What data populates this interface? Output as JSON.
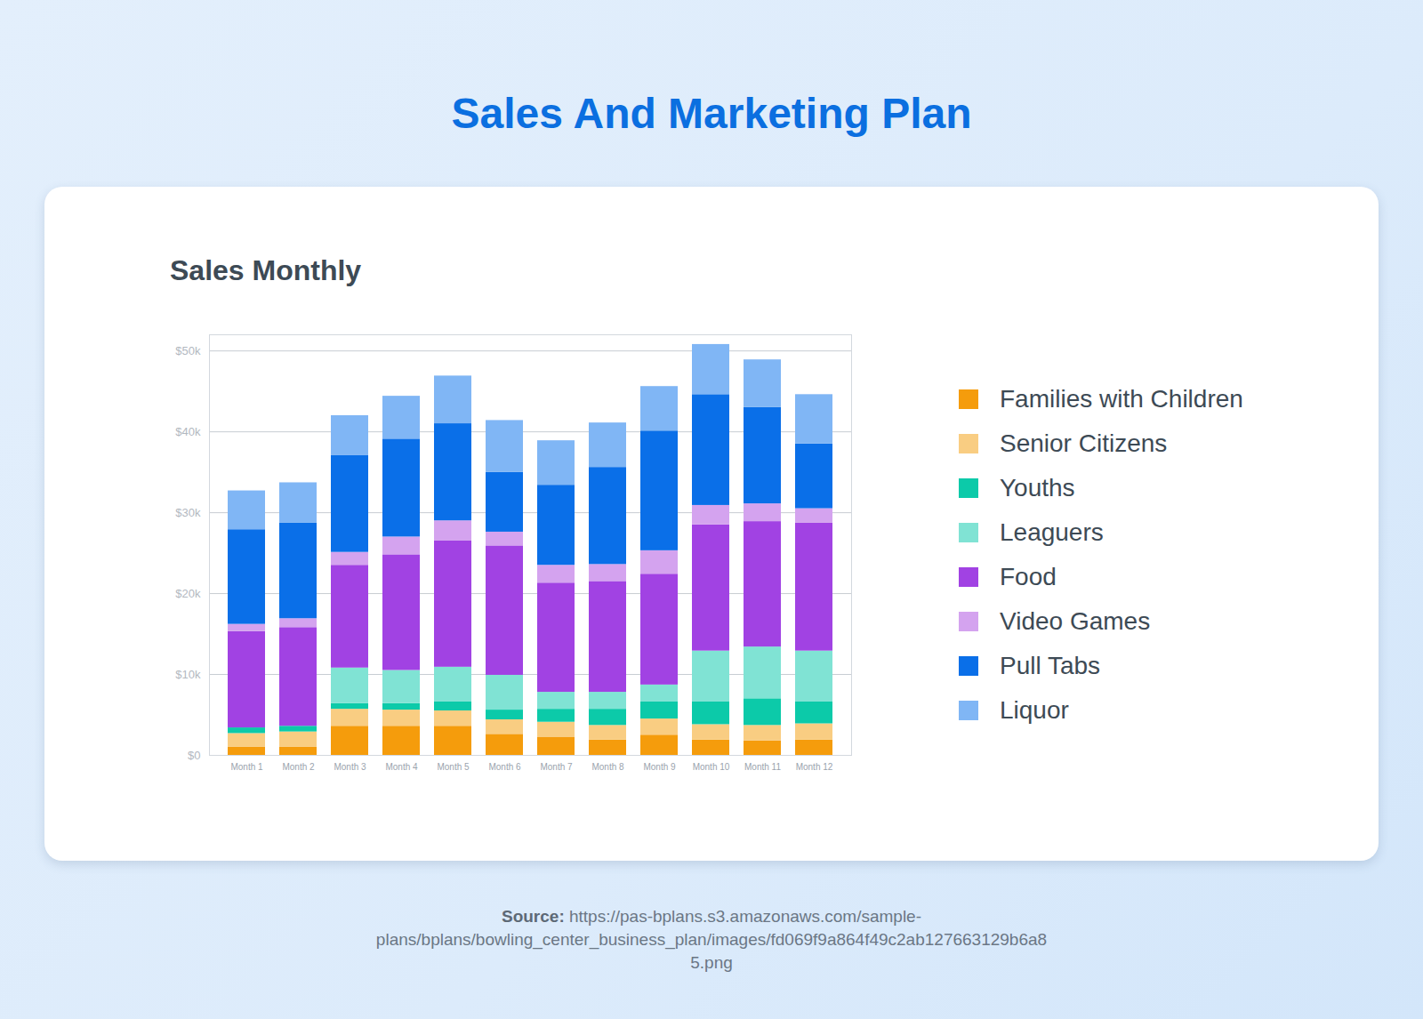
{
  "page": {
    "title": "Sales And Marketing Plan",
    "source_label": "Source:",
    "source": "https://pas-bplans.s3.amazonaws.com/sample-plans/bplans/bowling_center_business_plan/images/fd069f9a864f49c2ab127663129b6a85.png"
  },
  "chart_data": {
    "type": "bar",
    "title": "Sales Monthly",
    "stacked": true,
    "grid": true,
    "legend": "right",
    "categories": [
      "Month 1",
      "Month 2",
      "Month 3",
      "Month 4",
      "Month 5",
      "Month 6",
      "Month 7",
      "Month 8",
      "Month 9",
      "Month 10",
      "Month 11",
      "Month 12"
    ],
    "series": [
      {
        "name": "Families with Children",
        "color": "#f59c0c",
        "values": [
          1000,
          1000,
          3600,
          3600,
          3600,
          2600,
          2200,
          1900,
          2500,
          1900,
          1800,
          1900
        ]
      },
      {
        "name": "Senior Citizens",
        "color": "#f9cd82",
        "values": [
          1700,
          1900,
          2100,
          2000,
          1900,
          1800,
          1900,
          1800,
          2000,
          1900,
          1900,
          2000
        ]
      },
      {
        "name": "Youths",
        "color": "#0ccaa9",
        "values": [
          700,
          700,
          700,
          800,
          1100,
          1200,
          1600,
          2000,
          2100,
          2800,
          3300,
          2700
        ]
      },
      {
        "name": "Leaguers",
        "color": "#80e3d4",
        "values": [
          0,
          0,
          4400,
          4100,
          4300,
          4300,
          2100,
          2100,
          2100,
          6300,
          6400,
          6300
        ]
      },
      {
        "name": "Food",
        "color": "#a142e3",
        "values": [
          11900,
          12200,
          12700,
          14300,
          15600,
          16000,
          13500,
          13700,
          13700,
          15600,
          15500,
          15800
        ]
      },
      {
        "name": "Video Games",
        "color": "#d4a3ef",
        "values": [
          900,
          1100,
          1600,
          2200,
          2500,
          1700,
          2200,
          2100,
          2900,
          2400,
          2200,
          1800
        ]
      },
      {
        "name": "Pull Tabs",
        "color": "#0a6fe8",
        "values": [
          11700,
          11800,
          12000,
          12100,
          12000,
          7400,
          9900,
          12000,
          14800,
          13700,
          11900,
          8000
        ]
      },
      {
        "name": "Liquor",
        "color": "#80b6f5",
        "values": [
          4800,
          5000,
          4900,
          5300,
          5900,
          6400,
          5500,
          5500,
          5500,
          6200,
          5900,
          6100
        ]
      }
    ],
    "ylim": [
      0,
      52000
    ],
    "yticks": [
      {
        "value": 0,
        "label": "$0"
      },
      {
        "value": 10000,
        "label": "$10k"
      },
      {
        "value": 20000,
        "label": "$20k"
      },
      {
        "value": 30000,
        "label": "$30k"
      },
      {
        "value": 40000,
        "label": "$40k"
      },
      {
        "value": 50000,
        "label": "$50k"
      }
    ]
  }
}
